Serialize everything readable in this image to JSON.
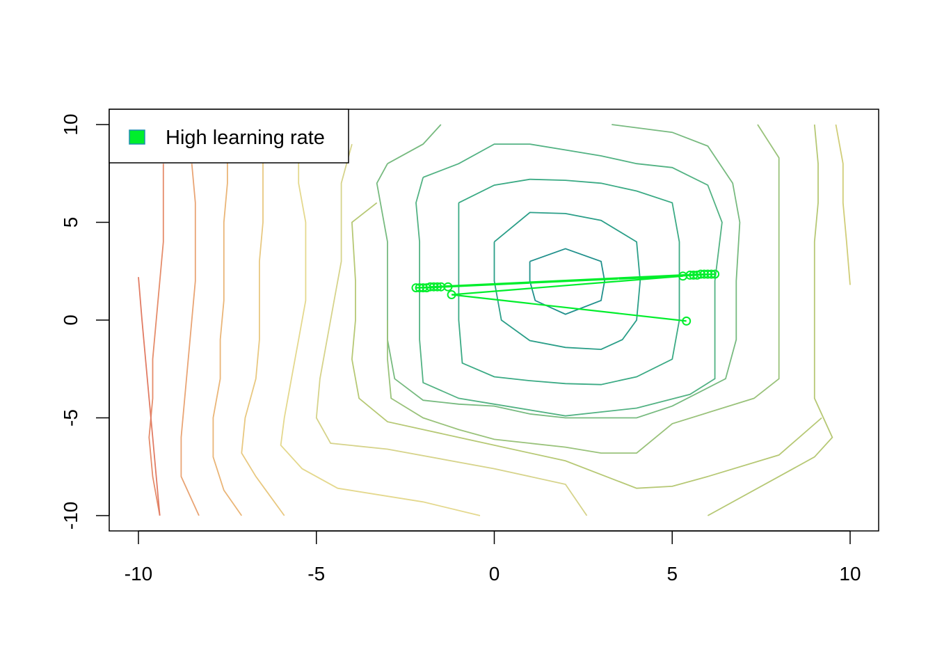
{
  "chart_data": {
    "type": "line",
    "title": "",
    "xlabel": "",
    "ylabel": "",
    "xlim": [
      -10.8,
      10.8
    ],
    "ylim": [
      -10.8,
      10.8
    ],
    "x_ticks": [
      -10,
      -5,
      0,
      5,
      10
    ],
    "y_ticks": [
      -10,
      -5,
      0,
      5,
      10
    ],
    "x_tick_labels": [
      "-10",
      "-5",
      "0",
      "5",
      "10"
    ],
    "y_tick_labels": [
      "-10",
      "-5",
      "0",
      "5",
      "10"
    ],
    "grid": false,
    "legend": {
      "position": "top-left",
      "entries": [
        {
          "label": "High learning rate",
          "color": "#00ee2c",
          "border": "#1f8fb0"
        }
      ]
    },
    "contours": [
      {
        "color": "#20908c",
        "points": [
          [
            1,
            3
          ],
          [
            2,
            3.65
          ],
          [
            3,
            3
          ],
          [
            3.1,
            2
          ],
          [
            3,
            1
          ],
          [
            2,
            0.3
          ],
          [
            1.15,
            1
          ],
          [
            1,
            2
          ],
          [
            1,
            3
          ]
        ]
      },
      {
        "color": "#2a9e88",
        "points": [
          [
            0,
            4
          ],
          [
            1,
            5.5
          ],
          [
            2,
            5.45
          ],
          [
            3,
            5.1
          ],
          [
            4,
            4
          ],
          [
            4.1,
            2
          ],
          [
            4,
            0
          ],
          [
            3.6,
            -1
          ],
          [
            3,
            -1.5
          ],
          [
            2,
            -1.4
          ],
          [
            1,
            -1.05
          ],
          [
            0.2,
            0
          ],
          [
            0,
            2
          ],
          [
            0,
            4
          ]
        ]
      },
      {
        "color": "#3aaa84",
        "points": [
          [
            -1,
            6
          ],
          [
            0,
            6.9
          ],
          [
            1,
            7.2
          ],
          [
            2,
            7.15
          ],
          [
            3,
            7
          ],
          [
            4,
            6.6
          ],
          [
            5,
            6
          ],
          [
            5.2,
            4
          ],
          [
            5.2,
            2
          ],
          [
            5.2,
            0
          ],
          [
            5,
            -2
          ],
          [
            4,
            -2.9
          ],
          [
            3,
            -3.3
          ],
          [
            2,
            -3.25
          ],
          [
            1,
            -3.1
          ],
          [
            0,
            -2.9
          ],
          [
            -0.9,
            -2.2
          ],
          [
            -1,
            0
          ],
          [
            -1,
            2
          ],
          [
            -1,
            4
          ],
          [
            -1,
            6
          ]
        ]
      },
      {
        "color": "#52b283",
        "points": [
          [
            -2,
            7.3
          ],
          [
            -1,
            8
          ],
          [
            0,
            9
          ],
          [
            1,
            9
          ],
          [
            2,
            8.7
          ],
          [
            3,
            8.4
          ],
          [
            4,
            8
          ],
          [
            5,
            7.8
          ],
          [
            6,
            6.9
          ],
          [
            6.4,
            5
          ],
          [
            6.2,
            2
          ],
          [
            6.2,
            0
          ],
          [
            6.2,
            -3
          ],
          [
            5.5,
            -3.8
          ],
          [
            4,
            -4.5
          ],
          [
            2,
            -4.9
          ],
          [
            0,
            -4.3
          ],
          [
            -1,
            -4
          ],
          [
            -2,
            -3.2
          ],
          [
            -2.1,
            -1
          ],
          [
            -2.1,
            2
          ],
          [
            -2.1,
            4
          ],
          [
            -2.2,
            6
          ],
          [
            -2,
            7.3
          ]
        ]
      },
      {
        "color": "#77ba7f",
        "points": [
          [
            -3,
            8
          ],
          [
            -2,
            9
          ],
          [
            -1.5,
            10
          ]
        ],
        "closed": false
      },
      {
        "color": "#77ba7f",
        "points": [
          [
            3.3,
            10
          ],
          [
            5,
            9.6
          ],
          [
            6,
            8.9
          ],
          [
            6.7,
            7
          ],
          [
            6.9,
            5
          ],
          [
            6.8,
            2
          ],
          [
            6.8,
            -1
          ],
          [
            6.5,
            -3
          ],
          [
            5,
            -4.4
          ],
          [
            4,
            -5
          ],
          [
            3,
            -5
          ],
          [
            2,
            -5
          ],
          [
            1,
            -4.8
          ],
          [
            0,
            -4.4
          ],
          [
            -1,
            -4.3
          ],
          [
            -2,
            -4.1
          ],
          [
            -2.8,
            -3
          ],
          [
            -3,
            -1
          ],
          [
            -3,
            2
          ],
          [
            -3,
            4
          ],
          [
            -3.2,
            6
          ],
          [
            -3.3,
            7
          ],
          [
            -3,
            8
          ]
        ],
        "closed": false
      },
      {
        "color": "#99c27a",
        "points": [
          [
            7.4,
            10
          ],
          [
            8,
            8.3
          ],
          [
            8,
            6
          ],
          [
            8,
            4
          ],
          [
            8,
            2
          ],
          [
            8,
            0
          ],
          [
            8,
            -3
          ],
          [
            7.3,
            -4
          ],
          [
            5,
            -5.3
          ],
          [
            4,
            -6.8
          ],
          [
            3,
            -6.8
          ],
          [
            2,
            -6.5
          ],
          [
            0,
            -6.1
          ],
          [
            -1,
            -5.6
          ],
          [
            -2,
            -5
          ],
          [
            -2.9,
            -4
          ],
          [
            -3,
            -2
          ],
          [
            -3,
            0
          ]
        ],
        "closed": false
      },
      {
        "color": "#b6c874",
        "points": [
          [
            9,
            10
          ],
          [
            9.1,
            8
          ],
          [
            9.1,
            6
          ],
          [
            9,
            4
          ],
          [
            9,
            2
          ],
          [
            9,
            0
          ],
          [
            9,
            -2
          ],
          [
            9,
            -4
          ],
          [
            9.5,
            -6
          ],
          [
            9,
            -7
          ],
          [
            8,
            -8
          ],
          [
            6,
            -10
          ]
        ],
        "closed": false
      },
      {
        "color": "#d0cd78",
        "points": [
          [
            10,
            1.8
          ],
          [
            9.9,
            4
          ],
          [
            9.8,
            6
          ],
          [
            9.8,
            8
          ],
          [
            9.6,
            10
          ]
        ],
        "closed": false
      },
      {
        "color": "#b6c874",
        "points": [
          [
            -3.3,
            6
          ],
          [
            -4,
            5
          ],
          [
            -3.9,
            2
          ],
          [
            -3.9,
            0
          ],
          [
            -4,
            -2
          ],
          [
            -3.8,
            -4
          ],
          [
            -3,
            -5.2
          ],
          [
            -1,
            -6
          ],
          [
            2,
            -7.2
          ],
          [
            4,
            -8.6
          ],
          [
            5,
            -8.5
          ],
          [
            6,
            -8
          ],
          [
            8,
            -6.9
          ],
          [
            9.2,
            -5
          ]
        ],
        "closed": false
      },
      {
        "color": "#d6d38a",
        "points": [
          [
            -4,
            9
          ],
          [
            -4.3,
            7
          ],
          [
            -4.3,
            5
          ],
          [
            -4.3,
            3
          ],
          [
            -4.5,
            1
          ],
          [
            -4.7,
            -1
          ],
          [
            -4.9,
            -3
          ],
          [
            -5,
            -5
          ],
          [
            -4.6,
            -6.3
          ],
          [
            -3,
            -6.6
          ],
          [
            0,
            -7.6
          ],
          [
            2,
            -8.4
          ],
          [
            2.6,
            -10
          ]
        ],
        "closed": false
      },
      {
        "color": "#e4d88d",
        "points": [
          [
            -5.5,
            9
          ],
          [
            -5.5,
            7
          ],
          [
            -5.3,
            5
          ],
          [
            -5.3,
            3
          ],
          [
            -5.3,
            1
          ],
          [
            -5.5,
            -1
          ],
          [
            -5.7,
            -3
          ],
          [
            -5.9,
            -5
          ],
          [
            -6,
            -6.4
          ],
          [
            -5.4,
            -7.6
          ],
          [
            -4.4,
            -8.6
          ],
          [
            -2,
            -9.3
          ],
          [
            -0.4,
            -10
          ]
        ],
        "closed": false
      },
      {
        "color": "#e8c880",
        "points": [
          [
            -6.5,
            9
          ],
          [
            -6.5,
            7
          ],
          [
            -6.5,
            5
          ],
          [
            -6.6,
            3
          ],
          [
            -6.6,
            1
          ],
          [
            -6.6,
            -1
          ],
          [
            -6.7,
            -3
          ],
          [
            -7,
            -5
          ],
          [
            -7.1,
            -6.8
          ],
          [
            -6.7,
            -8
          ],
          [
            -5.9,
            -10
          ]
        ],
        "closed": false
      },
      {
        "color": "#eab577",
        "points": [
          [
            -7.5,
            9
          ],
          [
            -7.5,
            7
          ],
          [
            -7.6,
            5
          ],
          [
            -7.6,
            3
          ],
          [
            -7.6,
            1
          ],
          [
            -7.7,
            -1
          ],
          [
            -7.7,
            -3
          ],
          [
            -7.9,
            -5
          ],
          [
            -7.9,
            -7
          ],
          [
            -7.6,
            -8.7
          ],
          [
            -7.1,
            -10
          ]
        ],
        "closed": false
      },
      {
        "color": "#e9a474",
        "points": [
          [
            -8.5,
            8
          ],
          [
            -8.4,
            6
          ],
          [
            -8.4,
            4
          ],
          [
            -8.4,
            2
          ],
          [
            -8.5,
            0
          ],
          [
            -8.6,
            -2
          ],
          [
            -8.7,
            -4
          ],
          [
            -8.8,
            -6
          ],
          [
            -8.8,
            -8
          ],
          [
            -8.3,
            -10
          ]
        ],
        "closed": false
      },
      {
        "color": "#e58c6a",
        "points": [
          [
            -9.3,
            8
          ],
          [
            -9.3,
            6
          ],
          [
            -9.3,
            4
          ],
          [
            -9.4,
            2
          ],
          [
            -9.5,
            0
          ],
          [
            -9.6,
            -2
          ],
          [
            -9.6,
            -4
          ],
          [
            -9.7,
            -6
          ],
          [
            -9.6,
            -8
          ],
          [
            -9.4,
            -10
          ]
        ],
        "closed": false
      },
      {
        "color": "#e17b63",
        "points": [
          [
            -10,
            2.2
          ],
          [
            -9.9,
            0
          ],
          [
            -9.8,
            -2
          ],
          [
            -9.7,
            -4
          ],
          [
            -9.6,
            -6
          ],
          [
            -9.5,
            -8
          ],
          [
            -9.4,
            -10
          ]
        ],
        "closed": false
      }
    ],
    "series": [
      {
        "color": "#00ee2c",
        "points": [
          [
            5.4,
            -0.05
          ],
          [
            -1.2,
            1.3
          ],
          [
            5.3,
            2.25
          ],
          [
            -2.2,
            1.65
          ],
          [
            5.5,
            2.3
          ],
          [
            -2.1,
            1.65
          ],
          [
            5.6,
            2.3
          ],
          [
            -2,
            1.65
          ],
          [
            5.7,
            2.3
          ],
          [
            -1.9,
            1.65
          ],
          [
            5.8,
            2.35
          ],
          [
            -1.8,
            1.7
          ],
          [
            5.9,
            2.35
          ],
          [
            -1.7,
            1.7
          ],
          [
            6,
            2.35
          ],
          [
            -1.6,
            1.7
          ],
          [
            6.1,
            2.35
          ],
          [
            -1.5,
            1.7
          ],
          [
            6.2,
            2.35
          ],
          [
            -1.3,
            1.7
          ]
        ]
      }
    ]
  }
}
